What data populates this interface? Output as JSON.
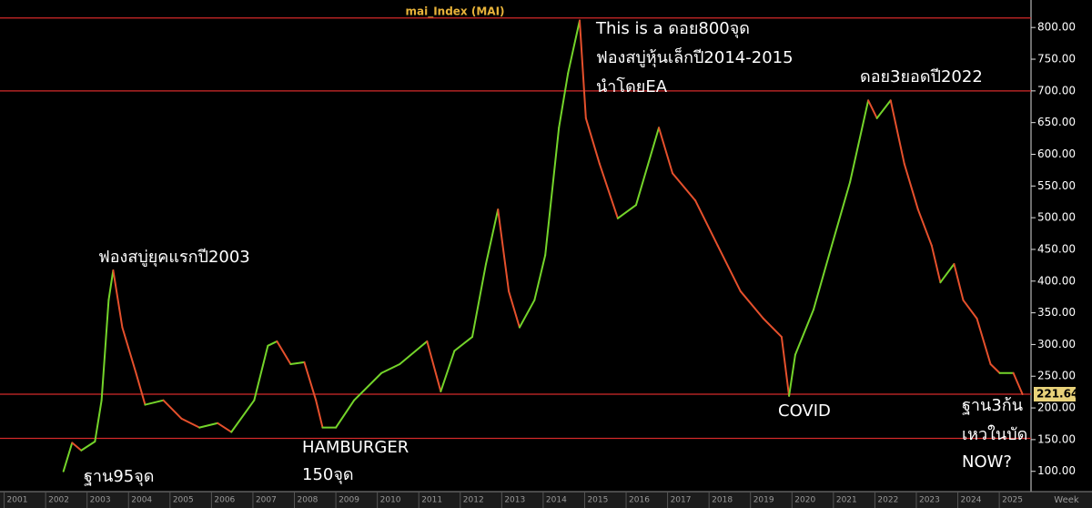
{
  "chart_data": {
    "type": "line",
    "title": "mai_Index (MAI)",
    "x_label": "Week",
    "x": [
      2002.43,
      2002.64,
      2002.86,
      2003.19,
      2003.35,
      2003.52,
      2003.63,
      2003.85,
      2004.18,
      2004.4,
      2004.84,
      2005.28,
      2005.71,
      2006.15,
      2006.48,
      2007.03,
      2007.36,
      2007.58,
      2007.91,
      2008.24,
      2008.52,
      2008.68,
      2009.0,
      2009.44,
      2010.1,
      2010.54,
      2011.2,
      2011.53,
      2011.86,
      2012.29,
      2012.62,
      2012.91,
      2013.17,
      2013.43,
      2013.79,
      2014.05,
      2014.38,
      2014.6,
      2014.88,
      2015.03,
      2015.36,
      2015.8,
      2016.24,
      2016.79,
      2017.12,
      2017.67,
      2018.21,
      2018.76,
      2019.31,
      2019.75,
      2019.93,
      2020.08,
      2020.52,
      2020.96,
      2021.4,
      2021.84,
      2022.05,
      2022.38,
      2022.71,
      2023.04,
      2023.37,
      2023.58,
      2023.91,
      2024.13,
      2024.46,
      2024.79,
      2025.01,
      2025.34,
      2025.56
    ],
    "series": [
      {
        "name": "mai_Index",
        "up_color": "#74d42a",
        "down_color": "#e5502c",
        "values": [
          100,
          145,
          133,
          147,
          212,
          370,
          417,
          327,
          255,
          205,
          212,
          183,
          169,
          176,
          162,
          212,
          298,
          305,
          269,
          272,
          212,
          169,
          169,
          212,
          255,
          269,
          305,
          226,
          290,
          312,
          427,
          513,
          384,
          327,
          370,
          441,
          642,
          728,
          811,
          657,
          585,
          499,
          520,
          642,
          570,
          527,
          456,
          384,
          341,
          312,
          219,
          284,
          355,
          456,
          556,
          685,
          657,
          685,
          585,
          513,
          456,
          398,
          427,
          370,
          341,
          269,
          255,
          255,
          221.64
        ]
      }
    ],
    "hlines": [
      815,
      700,
      221.64,
      152
    ],
    "hline_color": "#d42a2a",
    "xlim": [
      2000.9,
      2025.7
    ],
    "ylim": [
      68,
      829
    ],
    "xticks": [
      2001,
      2002,
      2003,
      2004,
      2005,
      2006,
      2007,
      2008,
      2009,
      2010,
      2011,
      2012,
      2013,
      2014,
      2015,
      2016,
      2017,
      2018,
      2019,
      2020,
      2021,
      2022,
      2023,
      2024,
      2025
    ],
    "yticks": [
      {
        "value": 100,
        "label": "100.00"
      },
      {
        "value": 150,
        "label": "150.00"
      },
      {
        "value": 200,
        "label": "200.00"
      },
      {
        "value": 250,
        "label": "250.00"
      },
      {
        "value": 300,
        "label": "300.00"
      },
      {
        "value": 350,
        "label": "350.00"
      },
      {
        "value": 400,
        "label": "400.00"
      },
      {
        "value": 450,
        "label": "450.00"
      },
      {
        "value": 500,
        "label": "500.00"
      },
      {
        "value": 550,
        "label": "550.00"
      },
      {
        "value": 600,
        "label": "600.00"
      },
      {
        "value": 650,
        "label": "650.00"
      },
      {
        "value": 700,
        "label": "700.00"
      },
      {
        "value": 750,
        "label": "750.00"
      },
      {
        "value": 800,
        "label": "800.00"
      }
    ],
    "annotations": [
      "This is a ดอย800จุด",
      "ฟองสบู่หุ้นเล็กปี2014-2015",
      "นำโดยEA",
      "ฟองสบู่ยุคแรกปี2003",
      "ดอย3ยอดปี2022",
      "ฐาน95จุด",
      "HAMBURGER",
      "150จุด",
      "COVID",
      "ฐาน3ก้น",
      "เหวในบัด",
      "NOW?"
    ]
  }
}
